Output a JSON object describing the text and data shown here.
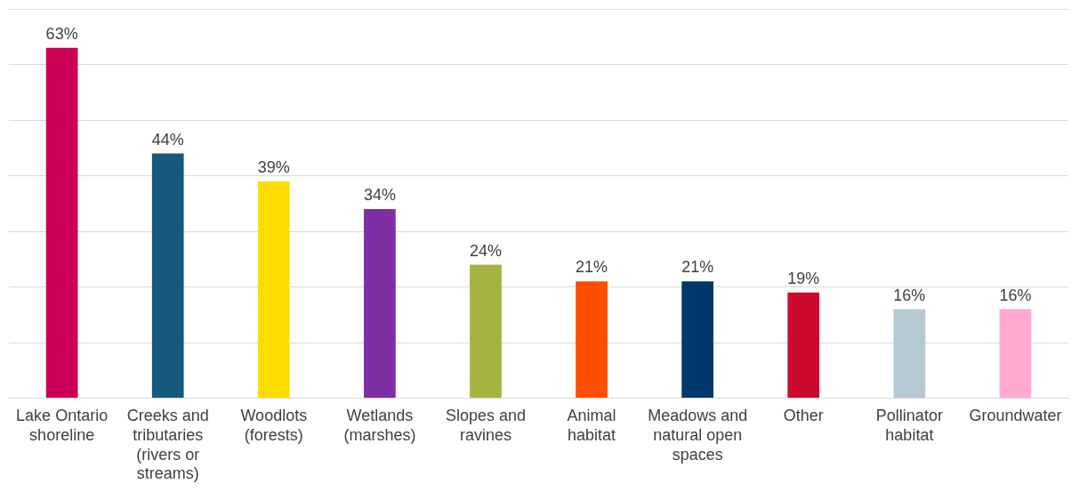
{
  "chart_data": {
    "type": "bar",
    "categories": [
      "Lake Ontario shoreline",
      "Creeks and tributaries (rivers or streams)",
      "Woodlots (forests)",
      "Wetlands (marshes)",
      "Slopes and ravines",
      "Animal habitat",
      "Meadows and natural open spaces",
      "Other",
      "Pollinator habitat",
      "Groundwater"
    ],
    "values": [
      63,
      44,
      39,
      34,
      24,
      21,
      21,
      19,
      16,
      16
    ],
    "value_labels": [
      "63%",
      "44%",
      "39%",
      "34%",
      "24%",
      "21%",
      "21%",
      "19%",
      "16%",
      "16%"
    ],
    "colors": [
      "#cc0055",
      "#155a7c",
      "#ffdd00",
      "#7f2fa6",
      "#a6b342",
      "#ff4e00",
      "#00386b",
      "#cc0a2f",
      "#b5c9d3",
      "#ffaad1"
    ],
    "ylim": [
      0,
      70
    ],
    "yticks": [
      {
        "value": 0,
        "label": null
      },
      {
        "value": 10,
        "label": null
      },
      {
        "value": 20,
        "label": null
      },
      {
        "value": 30,
        "label": null
      },
      {
        "value": 40,
        "label": null
      },
      {
        "value": 50,
        "label": null
      },
      {
        "value": 60,
        "label": null
      },
      {
        "value": 70,
        "label": null
      }
    ],
    "grid": "y",
    "tick_labels": "x",
    "legend": false
  }
}
